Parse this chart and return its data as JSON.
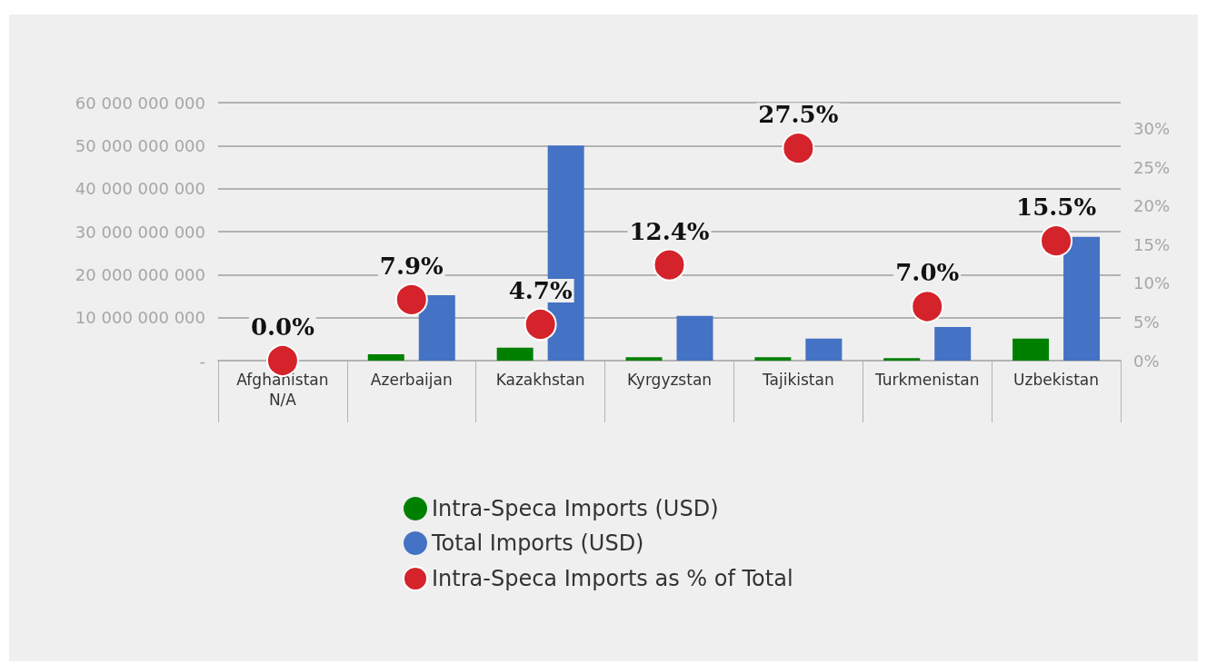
{
  "chart_data": {
    "type": "bar",
    "categories": [
      "Afghanistan\nN/A",
      "Azerbaijan",
      "Kazakhstan",
      "Kyrgyzstan",
      "Tajikistan",
      "Turkmenistan",
      "Uzbekistan"
    ],
    "series": [
      {
        "name": "Intra-Speca Imports (USD)",
        "color": "#008000",
        "values": [
          null,
          1500000000,
          3000000000,
          800000000,
          800000000,
          600000000,
          5100000000
        ]
      },
      {
        "name": "Total Imports (USD)",
        "color": "#4472c4",
        "values": [
          null,
          15200000000,
          50000000000,
          10400000000,
          5100000000,
          7800000000,
          28800000000
        ]
      },
      {
        "name": "Intra-Speca Imports as % of Total",
        "type": "scatter",
        "axis": "y2",
        "color": "#d4232a",
        "values": [
          0,
          7.9,
          4.7,
          12.4,
          27.5,
          7.0,
          15.5
        ],
        "value_labels": [
          "0.0%",
          "7.9%",
          "4.7%",
          "12.4%",
          "27.5%",
          "7.0%",
          "15.5%"
        ]
      }
    ],
    "ylim": [
      0,
      60000000000
    ],
    "yticks": [
      {
        "value": 0,
        "label": "-"
      },
      {
        "value": 10000000000,
        "label": "10 000 000 000"
      },
      {
        "value": 20000000000,
        "label": "20 000 000 000"
      },
      {
        "value": 30000000000,
        "label": "30 000 000 000"
      },
      {
        "value": 40000000000,
        "label": "40 000 000 000"
      },
      {
        "value": 50000000000,
        "label": "50 000 000 000"
      },
      {
        "value": 60000000000,
        "label": "60 000 000 000"
      }
    ],
    "y2lim": [
      0,
      33.4
    ],
    "y2ticks": [
      {
        "value": 0,
        "label": "0%"
      },
      {
        "value": 5,
        "label": "5%"
      },
      {
        "value": 10,
        "label": "10%"
      },
      {
        "value": 15,
        "label": "15%"
      },
      {
        "value": 20,
        "label": "20%"
      },
      {
        "value": 25,
        "label": "25%"
      },
      {
        "value": 30,
        "label": "30%"
      }
    ],
    "grid": "y",
    "legend": "bottom",
    "marker": "circle"
  }
}
